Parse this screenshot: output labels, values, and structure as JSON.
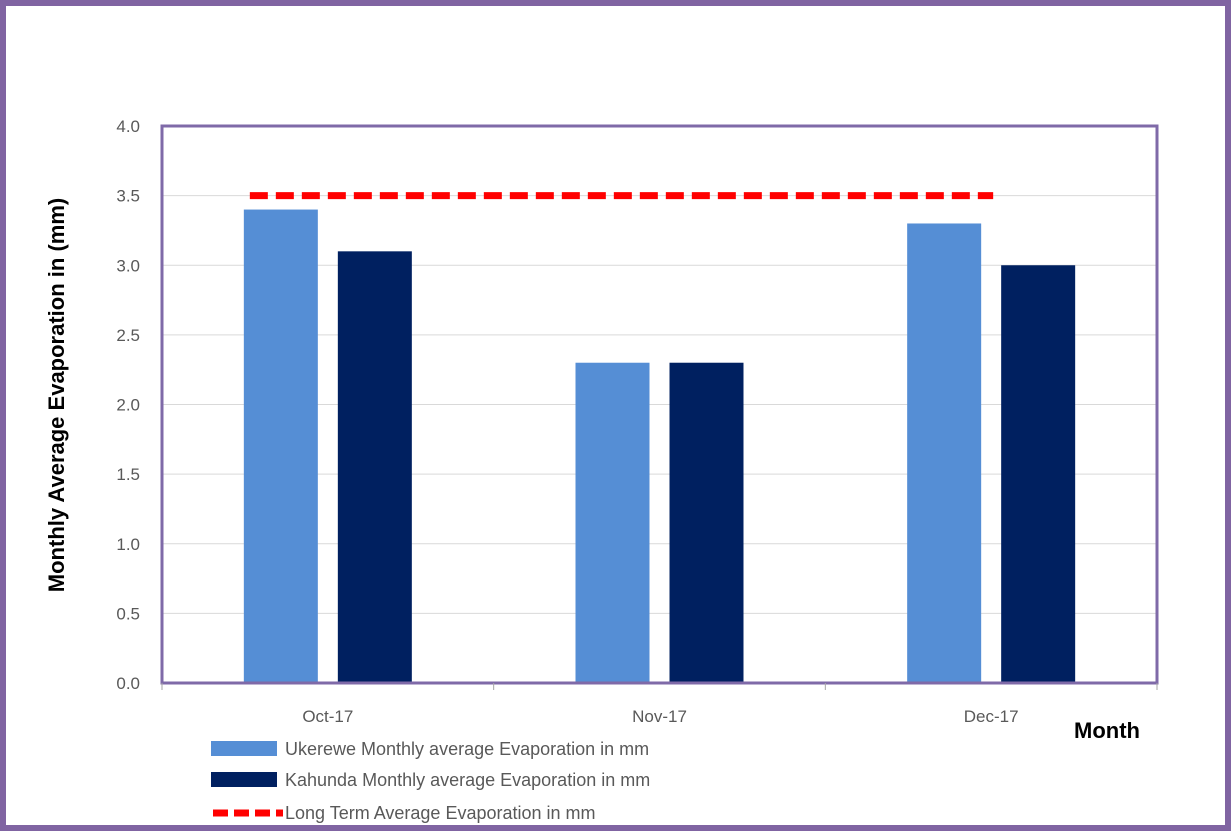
{
  "chart_data": {
    "type": "bar",
    "title": "",
    "xlabel": "Month",
    "ylabel": "Monthly Average Evaporation in (mm)",
    "categories": [
      "Oct-17",
      "Nov-17",
      "Dec-17"
    ],
    "ylim": [
      0,
      4
    ],
    "yticks": [
      "0.0",
      "0.5",
      "1.0",
      "1.5",
      "2.0",
      "2.5",
      "3.0",
      "3.5",
      "4.0"
    ],
    "grid": true,
    "legend_position": "bottom",
    "series": [
      {
        "name": "Ukerewe Monthly average Evaporation in mm",
        "type": "bar",
        "color": "#558ed5",
        "values": [
          3.4,
          2.3,
          3.3
        ]
      },
      {
        "name": "Kahunda Monthly average Evaporation in mm",
        "type": "bar",
        "color": "#002060",
        "values": [
          3.1,
          2.3,
          3.0
        ]
      },
      {
        "name": "Long Term Average Evaporation in mm",
        "type": "line",
        "style": "dashed",
        "color": "#ff0000",
        "values": [
          3.5,
          3.5,
          3.5
        ]
      }
    ],
    "frame_color": "#8064a2",
    "plot_border_color": "#7f6aa8"
  }
}
